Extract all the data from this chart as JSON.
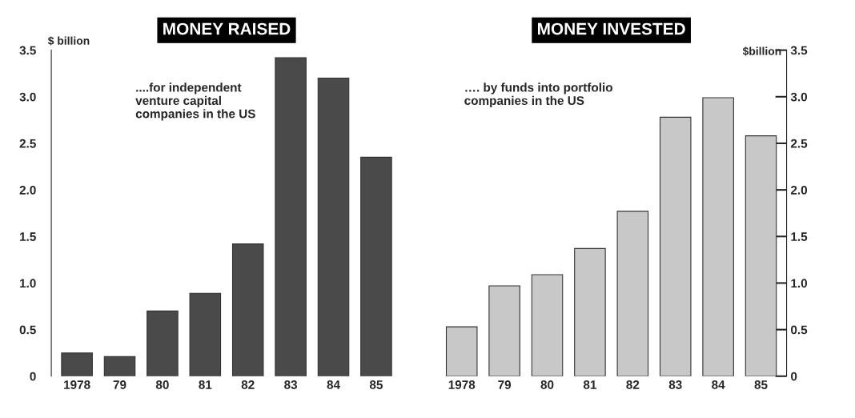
{
  "chart_data": [
    {
      "type": "bar",
      "title": "MONEY RAISED",
      "ylabel": "$ billion",
      "categories": [
        "1978",
        "79",
        "80",
        "81",
        "82",
        "83",
        "84",
        "85"
      ],
      "values": [
        0.25,
        0.21,
        0.7,
        0.89,
        1.42,
        3.42,
        3.2,
        2.35
      ],
      "color": "#4a4a4a",
      "ylim": [
        0,
        3.5
      ],
      "yticks": [
        0,
        0.5,
        {
          "value": 1,
          "label": "1.0"
        },
        1.5,
        {
          "value": 2,
          "label": "2.0"
        },
        2.5,
        {
          "value": 3,
          "label": "3.0"
        },
        3.5
      ],
      "annotations": [
        "....for independent\nventure capital\ncompanies in the US"
      ],
      "grid": false
    },
    {
      "type": "bar",
      "title": "MONEY INVESTED",
      "y2label": "$billion",
      "categories": [
        "1978",
        "79",
        "80",
        "81",
        "82",
        "83",
        "84",
        "85"
      ],
      "series": [
        {
          "values": [
            0.53,
            0.97,
            1.09,
            1.37,
            1.77,
            2.78,
            2.99,
            2.58
          ],
          "color": "#c8c8c8",
          "axis": "y2"
        }
      ],
      "y2lim": [
        0,
        3.5
      ],
      "y2ticks": [
        0,
        0.5,
        {
          "value": 1,
          "label": "1.0"
        },
        1.5,
        {
          "value": 2,
          "label": "2.0"
        },
        2.5,
        {
          "value": 3,
          "label": "3.0"
        },
        3.5
      ],
      "annotations": [
        "…. by funds into portfolio\ncompanies in the US"
      ],
      "grid": false
    }
  ]
}
